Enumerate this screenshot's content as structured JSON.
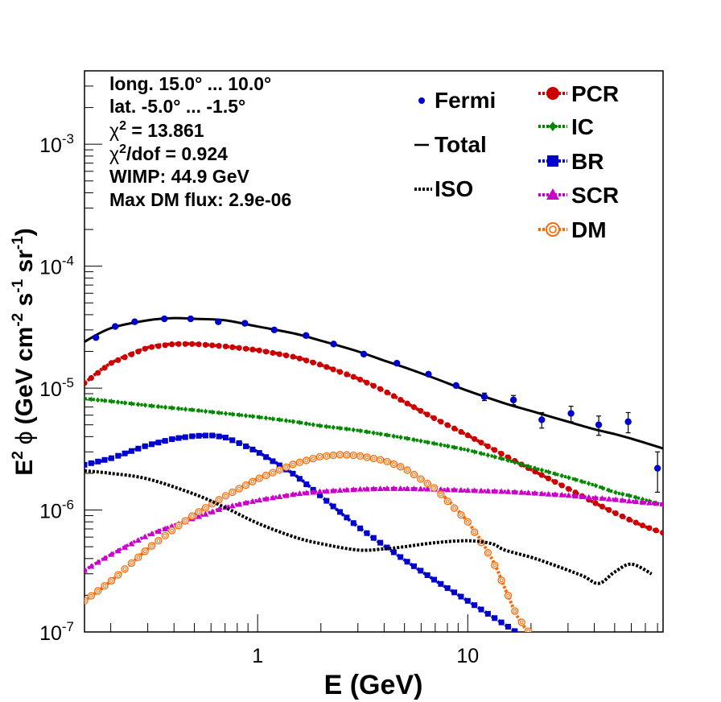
{
  "chart_data": {
    "type": "scatter",
    "x_scale": "log",
    "y_scale": "log",
    "xlim": [
      0.15,
      85
    ],
    "ylim": [
      1e-07,
      0.004
    ],
    "xlabel": "E (GeV)",
    "ylabel_parts": {
      "e": "E",
      "sup2": "2",
      "phi": "ϕ",
      "open": "(GeV cm",
      "sup_m2": "-2",
      "s": " s",
      "sup_m1a": "-1",
      "sr": " sr",
      "sup_m1b": "-1",
      "close": ")"
    },
    "x_ticks": [
      {
        "value": 1,
        "label": "1"
      },
      {
        "value": 10,
        "label": "10"
      }
    ],
    "y_ticks": [
      {
        "value": 1e-07,
        "base": "10",
        "exp": "-7"
      },
      {
        "value": 1e-06,
        "base": "10",
        "exp": "-6"
      },
      {
        "value": 1e-05,
        "base": "10",
        "exp": "-5"
      },
      {
        "value": 0.0001,
        "base": "10",
        "exp": "-4"
      },
      {
        "value": 0.001,
        "base": "10",
        "exp": "-3"
      }
    ],
    "grid": false,
    "annotations": {
      "longitude": "long. 15.0° ... 10.0°",
      "latitude": "lat. -5.0° ... -1.5°",
      "chi2_sym": "χ",
      "chi2_exp": "2",
      "chi2_val": " = 13.861",
      "chi2dof_sym": "χ",
      "chi2dof_exp": "2",
      "chi2dof_val": "/dof = 0.924",
      "wimp": "WIMP: 44.9 GeV",
      "max_dm_flux": "Max DM flux: 2.9e-06"
    },
    "legend": {
      "placement": "top-right",
      "entries": [
        {
          "key": "fermi",
          "label": "Fermi"
        },
        {
          "key": "total",
          "label": "Total"
        },
        {
          "key": "iso",
          "label": "ISO"
        },
        {
          "key": "pcr",
          "label": "PCR"
        },
        {
          "key": "ic",
          "label": "IC"
        },
        {
          "key": "br",
          "label": "BR"
        },
        {
          "key": "scr",
          "label": "SCR"
        },
        {
          "key": "dm",
          "label": "DM"
        }
      ]
    },
    "fermi": {
      "name": "Fermi",
      "color": "#0000cc",
      "x": [
        0.17,
        0.21,
        0.26,
        0.36,
        0.48,
        0.65,
        0.87,
        1.2,
        1.7,
        2.3,
        3.2,
        4.6,
        6.5,
        8.8,
        12,
        16.5,
        22.5,
        31,
        42,
        58,
        80
      ],
      "y": [
        2.6e-05,
        3.2e-05,
        3.5e-05,
        3.7e-05,
        3.7e-05,
        3.5e-05,
        3.4e-05,
        3e-05,
        2.7e-05,
        2.3e-05,
        1.9e-05,
        1.6e-05,
        1.3e-05,
        1.05e-05,
        8.5e-06,
        8e-06,
        5.5e-06,
        6.2e-06,
        5e-06,
        5.3e-06,
        2.2e-06
      ],
      "err": [
        0,
        0,
        0,
        0,
        0,
        0,
        0,
        0,
        0,
        0,
        0,
        0,
        0,
        0,
        6e-07,
        7e-07,
        8e-07,
        9e-07,
        9e-07,
        1e-06,
        8e-07
      ]
    },
    "series": [
      {
        "name": "Total",
        "key": "total",
        "color": "#000000",
        "style": "solid",
        "x": [
          0.15,
          0.2,
          0.3,
          0.4,
          0.5,
          0.7,
          1.0,
          1.5,
          2.0,
          3.0,
          4.0,
          5.0,
          7.0,
          10,
          15,
          20,
          30,
          40,
          50,
          60,
          70,
          85
        ],
        "y": [
          2.4e-05,
          3.1e-05,
          3.6e-05,
          3.75e-05,
          3.7e-05,
          3.6e-05,
          3.2e-05,
          2.8e-05,
          2.45e-05,
          2e-05,
          1.68e-05,
          1.48e-05,
          1.2e-05,
          9.5e-06,
          7.5e-06,
          6.5e-06,
          5.3e-06,
          4.6e-06,
          4.2e-06,
          3.85e-06,
          3.55e-06,
          3.2e-06
        ]
      },
      {
        "name": "PCR",
        "key": "pcr",
        "color": "#cc0000",
        "style": "dotted",
        "x": [
          0.15,
          0.2,
          0.3,
          0.4,
          0.5,
          0.7,
          1.0,
          1.5,
          2.0,
          3.0,
          4.0,
          5.0,
          7.0,
          10,
          15,
          20,
          30,
          40,
          50,
          60,
          70,
          85
        ],
        "y": [
          1.1e-05,
          1.6e-05,
          2.15e-05,
          2.3e-05,
          2.3e-05,
          2.2e-05,
          2.05e-05,
          1.8e-05,
          1.55e-05,
          1.2e-05,
          9.5e-06,
          7.7e-06,
          5.6e-06,
          4.1e-06,
          2.8e-06,
          2.15e-06,
          1.5e-06,
          1.15e-06,
          9.5e-07,
          8.2e-07,
          7.3e-07,
          6.5e-07
        ]
      },
      {
        "name": "IC",
        "key": "ic",
        "color": "#008800",
        "style": "dotted",
        "x": [
          0.15,
          0.2,
          0.3,
          0.5,
          0.7,
          1.0,
          1.5,
          2.0,
          3.0,
          5.0,
          7.0,
          10,
          15,
          20,
          30,
          40,
          50,
          60,
          85
        ],
        "y": [
          8.2e-06,
          7.8e-06,
          7.2e-06,
          6.6e-06,
          6.2e-06,
          5.8e-06,
          5.3e-06,
          4.9e-06,
          4.5e-06,
          3.9e-06,
          3.5e-06,
          3.1e-06,
          2.6e-06,
          2.25e-06,
          1.85e-06,
          1.6e-06,
          1.4e-06,
          1.3e-06,
          1.1e-06
        ]
      },
      {
        "name": "BR",
        "key": "br",
        "color": "#0000cc",
        "style": "dotted",
        "x": [
          0.15,
          0.2,
          0.3,
          0.4,
          0.5,
          0.6,
          0.7,
          0.8,
          1.0,
          1.5,
          2.0,
          3.0,
          5.0,
          7.0,
          10,
          15,
          17
        ],
        "y": [
          2.35e-06,
          2.65e-06,
          3.4e-06,
          3.85e-06,
          4.05e-06,
          4.1e-06,
          3.95e-06,
          3.6e-06,
          3e-06,
          1.95e-06,
          1.3e-06,
          7.3e-07,
          3.9e-07,
          2.65e-07,
          1.8e-07,
          1.15e-07,
          1e-07
        ]
      },
      {
        "name": "SCR",
        "key": "scr",
        "color": "#cc00cc",
        "style": "dotted",
        "x": [
          0.15,
          0.2,
          0.3,
          0.5,
          0.7,
          1.0,
          1.5,
          2.0,
          3.0,
          4.0,
          5.0,
          7.0,
          10,
          15,
          20,
          30,
          40,
          50,
          60,
          85
        ],
        "y": [
          3.2e-07,
          4.3e-07,
          6.2e-07,
          8.6e-07,
          1.05e-06,
          1.2e-06,
          1.35e-06,
          1.42e-06,
          1.48e-06,
          1.5e-06,
          1.5e-06,
          1.48e-06,
          1.45e-06,
          1.42e-06,
          1.38e-06,
          1.32e-06,
          1.26e-06,
          1.22e-06,
          1.18e-06,
          1.12e-06
        ]
      },
      {
        "name": "DM",
        "key": "dm",
        "color": "#ff6600",
        "style": "dotted",
        "x": [
          0.15,
          0.2,
          0.3,
          0.4,
          0.5,
          0.7,
          1.0,
          1.5,
          2.0,
          2.5,
          3.0,
          4.0,
          5.0,
          7.0,
          10,
          13,
          15,
          17,
          19,
          21
        ],
        "y": [
          1.8e-07,
          2.6e-07,
          4.8e-07,
          7e-07,
          9.2e-07,
          1.3e-06,
          1.8e-06,
          2.4e-06,
          2.75e-06,
          2.85e-06,
          2.8e-06,
          2.55e-06,
          2.2e-06,
          1.5e-06,
          8e-07,
          4e-07,
          2.3e-07,
          1.4e-07,
          1.05e-07,
          9e-08
        ]
      },
      {
        "name": "ISO",
        "key": "iso",
        "color": "#000000",
        "style": "dotted",
        "x": [
          0.15,
          0.2,
          0.3,
          0.5,
          0.7,
          1.0,
          1.5,
          2.0,
          3.0,
          4.0,
          5.0,
          7.0,
          10,
          13,
          15,
          20,
          25,
          35,
          42,
          50,
          60,
          75
        ],
        "y": [
          2.1e-06,
          2e-06,
          1.8e-06,
          1.35e-06,
          1.05e-06,
          7.8e-07,
          6e-07,
          5.3e-07,
          4.7e-07,
          4.8e-07,
          5e-07,
          5.4e-07,
          5.6e-07,
          5.3e-07,
          4.7e-07,
          4.1e-07,
          3.6e-07,
          2.9e-07,
          2.5e-07,
          3.1e-07,
          3.6e-07,
          3e-07
        ]
      }
    ]
  }
}
